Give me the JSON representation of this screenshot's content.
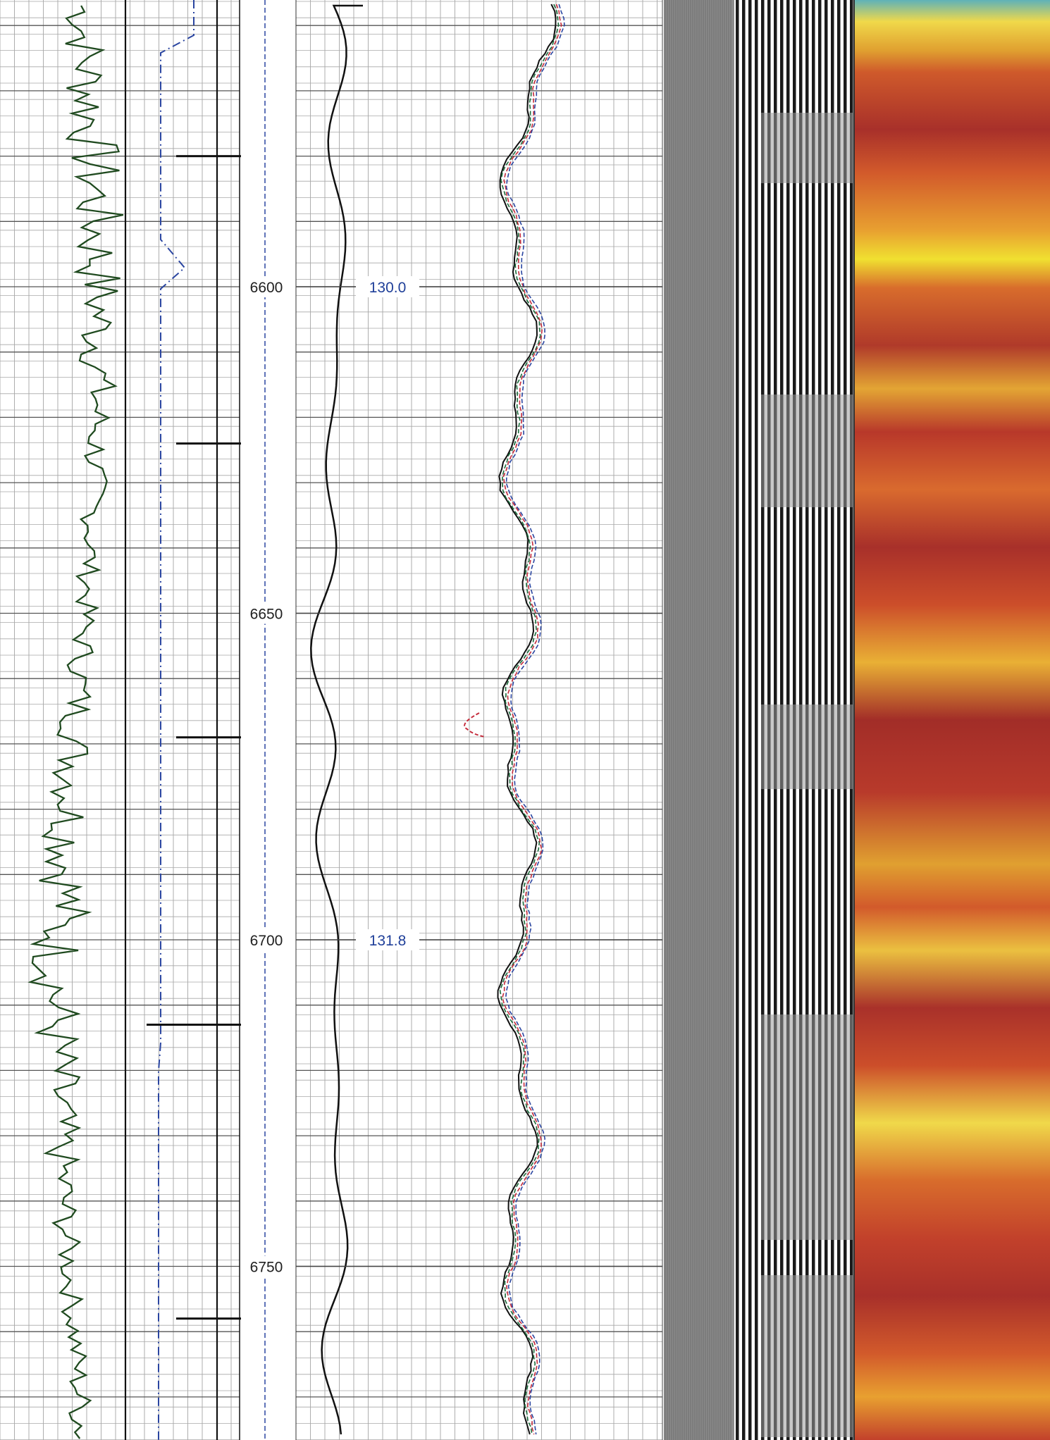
{
  "chart_data": {
    "type": "line",
    "title": "",
    "depth_axis": {
      "labels": [
        "6600",
        "6650",
        "6700",
        "6750"
      ],
      "values": [
        6600,
        6650,
        6700,
        6750
      ],
      "range": [
        6557,
        6776
      ]
    },
    "annotations": [
      {
        "depth": 6600,
        "text": "130.0"
      },
      {
        "depth": 6700,
        "text": "131.8"
      }
    ],
    "collar_marks_depths": [
      6580,
      6624,
      6669,
      6713,
      6758
    ],
    "series": [
      {
        "track": 1,
        "style": "solid",
        "color": "#1f4a1f"
      },
      {
        "track": 1,
        "style": "dash-dot",
        "color": "#2a45a0"
      },
      {
        "track": 2,
        "style": "solid",
        "color": "#111111"
      },
      {
        "track": 3,
        "style": "multi-curve",
        "colors": [
          "#111111",
          "#1a6a3a",
          "#c42a3a",
          "#2a45a0"
        ]
      }
    ],
    "images": [
      {
        "track": 4,
        "kind": "grayscale-variable-density"
      },
      {
        "track": 5,
        "kind": "amplitude-color-map",
        "colors": [
          "#f0e030",
          "#e8a030",
          "#d96a2e",
          "#c2412b",
          "#a8302a",
          "#5fb2b8"
        ]
      }
    ]
  }
}
